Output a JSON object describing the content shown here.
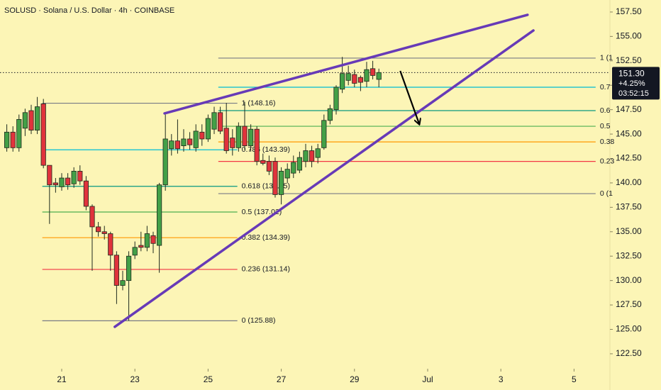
{
  "chart_data": {
    "type": "candlestick",
    "title": "SOLUSD · Solana / U.S. Dollar · 4h · COINBASE",
    "up_color": "#43a047",
    "down_color": "#e0333c",
    "x": [
      19.5,
      19.667,
      19.833,
      20,
      20.167,
      20.333,
      20.5,
      20.667,
      20.833,
      21,
      21.167,
      21.333,
      21.5,
      21.667,
      21.833,
      22,
      22.167,
      22.333,
      22.5,
      22.667,
      22.833,
      23,
      23.167,
      23.333,
      23.5,
      23.667,
      23.833,
      24,
      24.167,
      24.333,
      24.5,
      24.667,
      24.833,
      25,
      25.167,
      25.333,
      25.5,
      25.667,
      25.833,
      26,
      26.167,
      26.333,
      26.5,
      26.667,
      26.833,
      27,
      27.167,
      27.333,
      27.5,
      27.667,
      27.833,
      28,
      28.167,
      28.333,
      28.5,
      28.667,
      28.833,
      29,
      29.167,
      29.333,
      29.5,
      29.667
    ],
    "open": [
      143.6,
      145.2,
      143.6,
      145.6,
      147.4,
      145.4,
      148.1,
      141.8,
      140,
      139.6,
      140.5,
      139.9,
      141.2,
      140.2,
      137.6,
      135.5,
      135,
      134.8,
      132.6,
      129.5,
      130,
      132.6,
      133.6,
      133.4,
      134.6,
      133.6,
      139.8,
      143.5,
      144.3,
      143.8,
      144.5,
      143.6,
      145.2,
      144.5,
      145.5,
      147.2,
      145.6,
      144.6,
      143.6,
      145.8,
      143.8,
      145.5,
      142.3,
      142.2,
      142.2,
      138.8,
      140.5,
      141,
      141.3,
      142.2,
      143.3,
      142.6,
      143.6,
      146.4,
      147.5,
      149.6,
      150.5,
      151.1,
      150.8,
      150.4,
      151.7,
      150.6
    ],
    "high": [
      146,
      145.8,
      147,
      147.6,
      148,
      148.8,
      148.6,
      141.8,
      140.5,
      141,
      141,
      141.6,
      141.8,
      140.7,
      137.8,
      136,
      135.6,
      135,
      133,
      131,
      133,
      134,
      135,
      135.6,
      135,
      140,
      147,
      145,
      146.5,
      145.5,
      145.2,
      146,
      146,
      147,
      147.8,
      147.8,
      148.2,
      145.5,
      146.2,
      148.3,
      146,
      145.8,
      143,
      142.8,
      142.6,
      141.6,
      142,
      142.8,
      143.2,
      144,
      143.8,
      144,
      147,
      148,
      150,
      152.9,
      152,
      151.6,
      151,
      152.4,
      152.5,
      151.7
    ],
    "low": [
      143.2,
      143.2,
      143.2,
      144.8,
      145,
      145,
      141.5,
      135.8,
      139,
      139.2,
      139.3,
      139.5,
      139.8,
      137.2,
      131,
      134.5,
      134.2,
      131,
      127.6,
      129,
      125.9,
      132.2,
      133,
      133,
      132.8,
      130.8,
      139.2,
      142.8,
      143,
      143.2,
      143.4,
      143.2,
      143.8,
      144.2,
      145,
      145,
      143,
      142.8,
      143.2,
      143.4,
      143.2,
      141.8,
      141.8,
      140.8,
      138.5,
      137.8,
      140,
      140.5,
      141,
      141.6,
      141.6,
      142,
      143.4,
      146,
      147,
      149.2,
      150,
      149.8,
      149.4,
      149.8,
      150.6,
      149.8
    ],
    "close": [
      145.2,
      143.6,
      146.5,
      147.2,
      145.4,
      147.8,
      141.8,
      139.8,
      139.8,
      140.5,
      139.8,
      141.2,
      140.2,
      137.6,
      135.5,
      135,
      134.8,
      132.6,
      129.5,
      130,
      132.5,
      133.4,
      133.4,
      134.8,
      133.8,
      139.8,
      144.5,
      144.3,
      143.5,
      144.5,
      143.9,
      145.3,
      144.5,
      146.6,
      147.2,
      145.3,
      143.3,
      143.6,
      145.8,
      143.8,
      145.5,
      142.2,
      142,
      141.2,
      138.8,
      141.2,
      141.4,
      142.1,
      142.6,
      143.3,
      142.2,
      143.5,
      146.4,
      147.6,
      149.8,
      151.2,
      151.2,
      150.2,
      150.3,
      151.6,
      151,
      151.3
    ],
    "xlim": [
      19.314,
      35.981
    ],
    "xticks": [
      21,
      23,
      25,
      27,
      29,
      {
        "value": 31,
        "label": "Jul"
      },
      {
        "value": 33,
        "label": "3"
      },
      {
        "value": 35,
        "label": "5"
      }
    ],
    "ylim": [
      120.97,
      158.73
    ],
    "yticks": [
      {
        "value": 157.5,
        "label": "157.50"
      },
      {
        "value": 155,
        "label": "155.00"
      },
      {
        "value": 152.5,
        "label": "152.50"
      },
      {
        "value": 150,
        "label": "150.00"
      },
      {
        "value": 147.5,
        "label": "147.50"
      },
      {
        "value": 145,
        "label": "145.00"
      },
      {
        "value": 142.5,
        "label": "142.50"
      },
      {
        "value": 140,
        "label": "140.00"
      },
      {
        "value": 137.5,
        "label": "137.50"
      },
      {
        "value": 135,
        "label": "135.00"
      },
      {
        "value": 132.5,
        "label": "132.50"
      },
      {
        "value": 130,
        "label": "130.00"
      },
      {
        "value": 127.5,
        "label": "127.50"
      },
      {
        "value": 125,
        "label": "125.00"
      },
      {
        "value": 122.5,
        "label": "122.50"
      }
    ],
    "last_price": {
      "value": 151.3,
      "label": "151.30"
    },
    "change_label": "+4.25%",
    "countdown": "03:52:15",
    "fib_retracements": [
      {
        "x_range": [
          20.47,
          25.8
        ],
        "levels": [
          {
            "value": 148.16,
            "label": "1 (148.16)",
            "color": "#787b86"
          },
          {
            "value": 143.39,
            "label": "0.786 (143.39)",
            "color": "#00bcd4"
          },
          {
            "value": 139.65,
            "label": "0.618 (139.65)",
            "color": "#089981"
          },
          {
            "value": 137.02,
            "label": "0.5 (137.02)",
            "color": "#4caf50"
          },
          {
            "value": 134.39,
            "label": "0.382 (134.39)",
            "color": "#ff9800"
          },
          {
            "value": 131.14,
            "label": "0.236 (131.14)",
            "color": "#f23645"
          },
          {
            "value": 125.88,
            "label": "0 (125.88)",
            "color": "#787b86"
          }
        ]
      },
      {
        "x_range": [
          25.28,
          35.59
        ],
        "levels": [
          {
            "value": 152.78,
            "label": "1 (1",
            "color": "#787b86"
          },
          {
            "value": 149.8,
            "label": "0.7",
            "color": "#00bcd4"
          },
          {
            "value": 147.4,
            "label": "0.6",
            "color": "#089981"
          },
          {
            "value": 145.8,
            "label": "0.5",
            "color": "#4caf50"
          },
          {
            "value": 144.2,
            "label": "0.38",
            "color": "#ff9800"
          },
          {
            "value": 142.2,
            "label": "0.23",
            "color": "#f23645"
          },
          {
            "value": 138.9,
            "label": "0 (1",
            "color": "#787b86"
          }
        ]
      }
    ],
    "trendlines": [
      {
        "color": "#673ab7",
        "x": [
          23.81,
          33.73
        ],
        "y": [
          147.12,
          157.21
        ]
      },
      {
        "color": "#673ab7",
        "x": [
          22.45,
          33.89
        ],
        "y": [
          125.26,
          155.61
        ]
      }
    ],
    "arrow": {
      "color": "#000000",
      "x": [
        30.25,
        30.77
      ],
      "y": [
        151.47,
        146.03
      ]
    }
  }
}
